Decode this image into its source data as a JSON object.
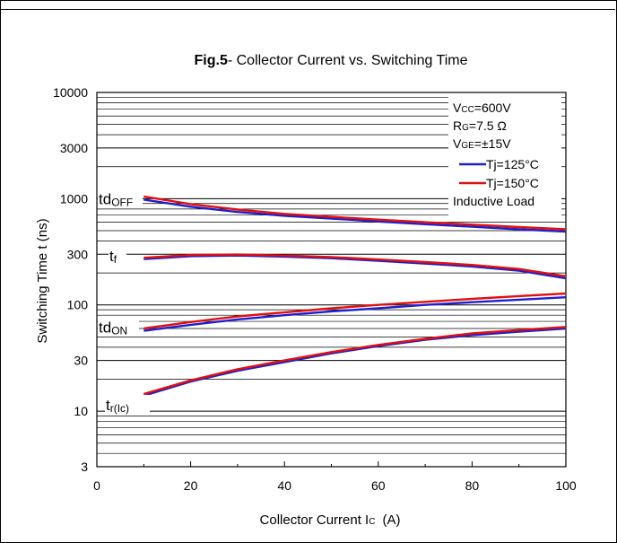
{
  "chart_data": {
    "type": "line",
    "title_bold": "Fig.5",
    "title_rest": "- Collector Current vs. Switching Time",
    "xlabel_main": "Collector Current I",
    "xlabel_sub": "C",
    "xlabel_unit": "(A)",
    "ylabel": "Switching Time t (ns)",
    "x_scale": "linear",
    "y_scale": "log",
    "xlim": [
      0,
      100
    ],
    "ylim": [
      3,
      10000
    ],
    "x_ticks": [
      0,
      20,
      40,
      60,
      80,
      100
    ],
    "x_tick_labels": [
      "0",
      "20",
      "40",
      "60",
      "80",
      "100"
    ],
    "y_ticks": [
      3,
      10,
      30,
      100,
      300,
      1000,
      3000,
      10000
    ],
    "y_tick_labels": [
      "3",
      "10",
      "30",
      "100",
      "300",
      "1000",
      "3000",
      "10000"
    ],
    "grid": "horizontal log grid",
    "legend_position": "top-right",
    "conditions": [
      {
        "main": "V",
        "sub": "CC",
        "rest": "=600V"
      },
      {
        "main": "R",
        "sub": "G",
        "rest": "=7.5 Ω"
      },
      {
        "main": "V",
        "sub": "GE",
        "rest": "=±15V"
      }
    ],
    "legend_note": "Inductive Load",
    "series": [
      {
        "name": "Tj=125°C",
        "color": "#1f1fcc"
      },
      {
        "name": "Tj=150°C",
        "color": "#e01010"
      }
    ],
    "curves": [
      {
        "label_main": "td",
        "label_sub": "OFF",
        "x": [
          10,
          20,
          30,
          40,
          50,
          60,
          70,
          80,
          90,
          100
        ],
        "y_125": [
          980,
          840,
          750,
          690,
          650,
          610,
          575,
          545,
          515,
          490
        ],
        "y_150": [
          1050,
          890,
          790,
          720,
          675,
          635,
          600,
          570,
          540,
          515
        ]
      },
      {
        "label_main": "t",
        "label_sub": "f",
        "x": [
          10,
          20,
          30,
          40,
          50,
          60,
          70,
          80,
          90,
          100
        ],
        "y_125": [
          270,
          288,
          292,
          285,
          275,
          260,
          245,
          230,
          210,
          178
        ],
        "y_150": [
          278,
          295,
          298,
          292,
          282,
          268,
          253,
          238,
          218,
          186
        ]
      },
      {
        "label_main": "td",
        "label_sub": "ON",
        "x": [
          10,
          20,
          30,
          40,
          50,
          60,
          70,
          80,
          90,
          100
        ],
        "y_125": [
          57,
          65,
          73,
          80,
          87,
          93,
          100,
          106,
          112,
          118
        ],
        "y_150": [
          60,
          69,
          78,
          85,
          93,
          100,
          107,
          114,
          121,
          128
        ]
      },
      {
        "label_main": "t",
        "label_sub": "r(Ic)",
        "x": [
          10,
          20,
          30,
          40,
          50,
          60,
          70,
          80,
          90,
          100
        ],
        "y_125": [
          14,
          19,
          24,
          29,
          35,
          41,
          47,
          52,
          56,
          60
        ],
        "y_150": [
          14.5,
          19.5,
          24.8,
          30,
          36,
          42,
          48,
          54,
          58,
          62
        ]
      }
    ]
  }
}
